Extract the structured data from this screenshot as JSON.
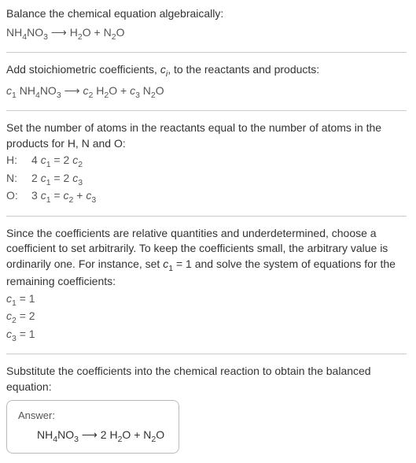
{
  "s1": {
    "line1": "Balance the chemical equation algebraically:",
    "eq_l": "NH",
    "eq_l_s1": "4",
    "eq_l2": "NO",
    "eq_l_s2": "3",
    "arrow": " ⟶ ",
    "eq_r1": "H",
    "eq_r1_s": "2",
    "eq_r2": "O + N",
    "eq_r2_s": "2",
    "eq_r3": "O"
  },
  "s2": {
    "line1a": "Add stoichiometric coefficients, ",
    "line1b": ", to the reactants and products:",
    "c": "c",
    "i": "i",
    "c1": "c",
    "c1s": "1",
    "sp1": " NH",
    "sp1a": "4",
    "sp1b": "NO",
    "sp1c": "3",
    "arrow": " ⟶ ",
    "c2": "c",
    "c2s": "2",
    "sp2": " H",
    "sp2a": "2",
    "sp2b": "O + ",
    "c3": "c",
    "c3s": "3",
    "sp3": " N",
    "sp3a": "2",
    "sp3b": "O"
  },
  "s3": {
    "line1": "Set the number of atoms in the reactants equal to the number of atoms in the products for H, N and O:",
    "rows": [
      {
        "label": "H:",
        "lhs_coef": "4",
        "lhs_c": "c",
        "lhs_s": "1",
        "eq": " = ",
        "rhs_coef": "2",
        "rhs_c": "c",
        "rhs_s": "2"
      },
      {
        "label": "N:",
        "lhs_coef": "2",
        "lhs_c": "c",
        "lhs_s": "1",
        "eq": " = ",
        "rhs_coef": "2",
        "rhs_c": "c",
        "rhs_s": "3"
      },
      {
        "label": "O:",
        "lhs_coef": "3",
        "lhs_c": "c",
        "lhs_s": "1",
        "eq": " = ",
        "r1c": "c",
        "r1s": "2",
        "plus": " + ",
        "r2c": "c",
        "r2s": "3"
      }
    ]
  },
  "s4": {
    "text_a": "Since the coefficients are relative quantities and underdetermined, choose a coefficient to set arbitrarily. To keep the coefficients small, the arbitrary value is ordinarily one. For instance, set ",
    "c": "c",
    "cs": "1",
    "text_b": " = 1 and solve the system of equations for the remaining coefficients:",
    "sol": [
      {
        "c": "c",
        "s": "1",
        "v": " = 1"
      },
      {
        "c": "c",
        "s": "2",
        "v": " = 2"
      },
      {
        "c": "c",
        "s": "3",
        "v": " = 1"
      }
    ]
  },
  "s5": {
    "text": "Substitute the coefficients into the chemical reaction to obtain the balanced equation:",
    "answer_label": "Answer:",
    "f1": "NH",
    "f1s": "4",
    "f2": "NO",
    "f2s": "3",
    "arrow": " ⟶ ",
    "f3": "2 H",
    "f3s": "2",
    "f4": "O + N",
    "f4s": "2",
    "f5": "O"
  },
  "style": {
    "text_color": "#333333",
    "formula_color": "#555555",
    "divider_color": "#cccccc",
    "box_border": "#bbbbbb",
    "background": "#ffffff",
    "body_fontsize": 14,
    "answer_title_fontsize": 13
  }
}
